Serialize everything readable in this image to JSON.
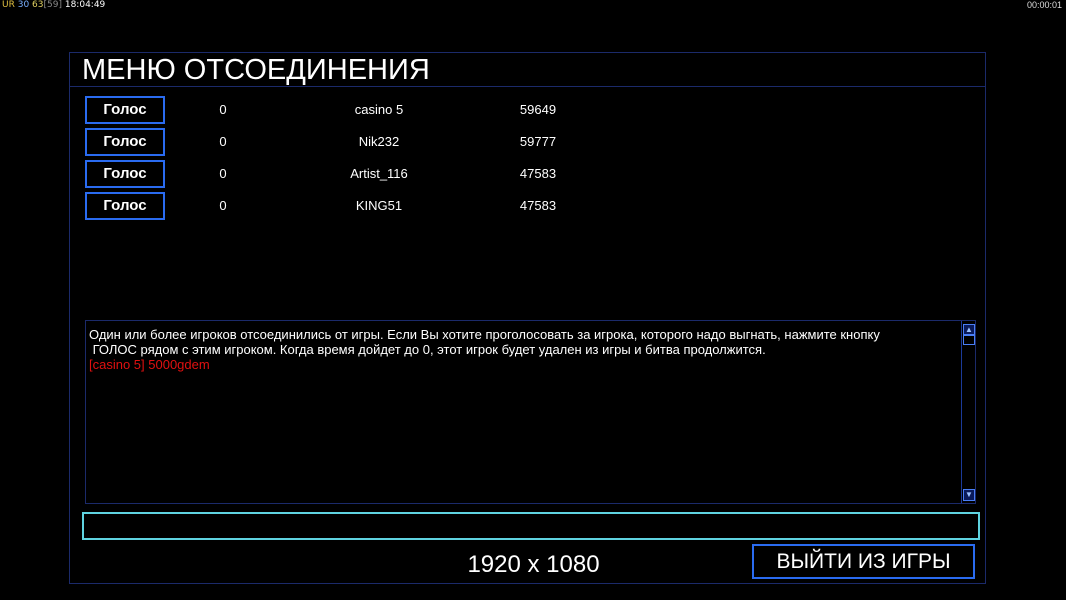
{
  "hud": {
    "label": "UR",
    "v1": "30",
    "v2": "63",
    "v3": "[59]",
    "time": "18:04:49",
    "elapsed": "00:00:01"
  },
  "title": "МЕНЮ ОТСОЕДИНЕНИЯ",
  "players": [
    {
      "vote_label": "Голос",
      "votes": "0",
      "name": "casino 5",
      "id": "59649"
    },
    {
      "vote_label": "Голос",
      "votes": "0",
      "name": "Nik232",
      "id": "59777"
    },
    {
      "vote_label": "Голос",
      "votes": "0",
      "name": "Artist_116",
      "id": "47583"
    },
    {
      "vote_label": "Голос",
      "votes": "0",
      "name": "KING51",
      "id": "47583"
    }
  ],
  "messages": {
    "line1": "Один или более игроков отсоединились от игры. Если Вы хотите проголосовать за игрока, которого надо выгнать, нажмите кнопку",
    "line2": " ГОЛОС рядом с этим игроком. Когда время дойдет до 0, этот игрок будет удален из игры и битва продолжится.",
    "chat": "[casino 5] 5000gdem"
  },
  "chat_input": "",
  "resolution": "1920 x 1080",
  "exit_label": "ВЫЙТИ ИЗ ИГРЫ"
}
